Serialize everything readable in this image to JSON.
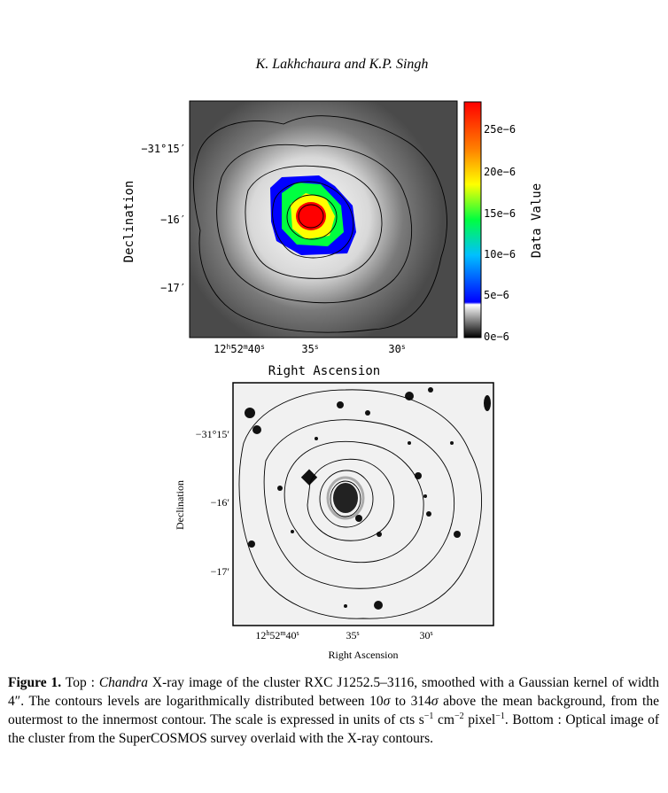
{
  "header": {
    "authors": "K. Lakhchaura and K.P. Singh"
  },
  "top_figure": {
    "y_ticks": [
      "−31°15′",
      "−16′",
      "−17′"
    ],
    "x_ticks": [
      [
        "12",
        "h",
        "52",
        "m",
        "40",
        "s"
      ],
      [
        "35",
        "s"
      ],
      [
        "30",
        "s"
      ]
    ],
    "x_label": "Right Ascension",
    "y_label": "Declination",
    "colorbar_ticks": [
      "25e−6",
      "20e−6",
      "15e−6",
      "10e−6",
      "5e−6",
      "0e−6"
    ],
    "colorbar_label": "Data Value"
  },
  "bottom_figure": {
    "y_ticks": [
      "−31°15′",
      "−16′",
      "−17′"
    ],
    "x_ticks": [
      [
        "12",
        "h",
        "52",
        "m",
        "40",
        "s"
      ],
      [
        "35",
        "s"
      ],
      [
        "30",
        "s"
      ]
    ],
    "x_label": "Right Ascension",
    "y_label": "Declination"
  },
  "caption": {
    "label": "Figure 1.",
    "segments": [
      "Top : ",
      "Chandra",
      " X-ray image of the cluster RXC J1252.5–3116, smoothed with a Gaussian kernel of width 4″.  The contours levels are logarithmically distributed between 10",
      "σ",
      " to 314",
      "σ",
      " above the mean background, from the outermost to the innermost contour.  The scale is expressed in units of cts s",
      "−1",
      " cm",
      "−2",
      " pixel",
      "−1",
      ".  Bottom : Optical image of the cluster from the SuperCOSMOS survey overlaid with the X-ray contours."
    ]
  }
}
